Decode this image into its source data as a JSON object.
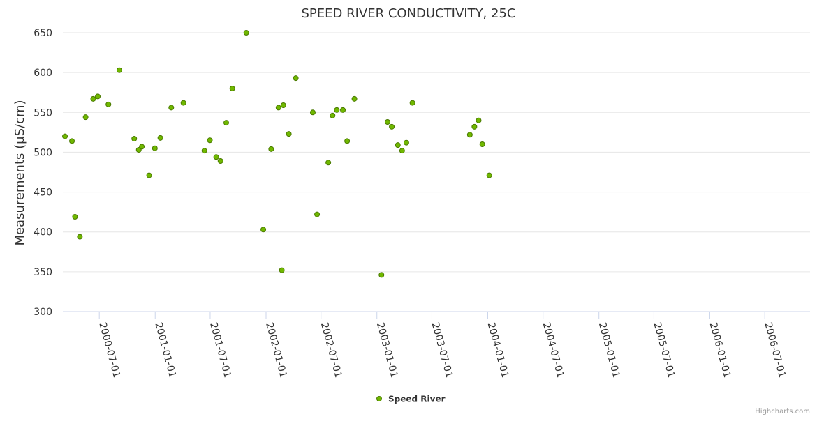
{
  "chart_data": {
    "type": "scatter",
    "title": "SPEED RIVER CONDUCTIVITY, 25C",
    "ylabel": "Measurements (µS/cm)",
    "ylim": [
      300,
      650
    ],
    "yticks": [
      300,
      350,
      400,
      450,
      500,
      550,
      600,
      650
    ],
    "xlim": [
      "2000-03-03",
      "2006-11-27"
    ],
    "xticks": [
      "2000-07-01",
      "2001-01-01",
      "2001-07-01",
      "2002-01-01",
      "2002-07-01",
      "2003-01-01",
      "2003-07-01",
      "2004-01-01",
      "2004-07-01",
      "2005-01-01",
      "2005-07-01",
      "2006-01-01",
      "2006-07-01"
    ],
    "grid": true,
    "legend": "bottom-center",
    "marker_fill": "#70b800",
    "marker_stroke": "#4a7a00",
    "series": [
      {
        "name": "Speed River",
        "points": [
          [
            "2000-03-10",
            520
          ],
          [
            "2000-04-02",
            514
          ],
          [
            "2000-04-12",
            419
          ],
          [
            "2000-04-28",
            394
          ],
          [
            "2000-05-17",
            544
          ],
          [
            "2000-06-11",
            567
          ],
          [
            "2000-06-26",
            570
          ],
          [
            "2000-07-31",
            560
          ],
          [
            "2000-09-05",
            603
          ],
          [
            "2000-10-24",
            517
          ],
          [
            "2000-11-08",
            503
          ],
          [
            "2000-11-18",
            507
          ],
          [
            "2000-12-12",
            471
          ],
          [
            "2000-12-31",
            505
          ],
          [
            "2001-01-18",
            518
          ],
          [
            "2001-02-23",
            556
          ],
          [
            "2001-04-04",
            562
          ],
          [
            "2001-06-12",
            502
          ],
          [
            "2001-06-30",
            515
          ],
          [
            "2001-07-21",
            494
          ],
          [
            "2001-08-04",
            489
          ],
          [
            "2001-08-23",
            537
          ],
          [
            "2001-09-12",
            580
          ],
          [
            "2001-10-28",
            650
          ],
          [
            "2001-12-23",
            403
          ],
          [
            "2002-01-18",
            504
          ],
          [
            "2002-02-11",
            556
          ],
          [
            "2002-02-22",
            352
          ],
          [
            "2002-02-27",
            559
          ],
          [
            "2002-03-17",
            523
          ],
          [
            "2002-04-09",
            593
          ],
          [
            "2002-06-04",
            550
          ],
          [
            "2002-06-18",
            422
          ],
          [
            "2002-07-25",
            487
          ],
          [
            "2002-08-08",
            546
          ],
          [
            "2002-08-22",
            553
          ],
          [
            "2002-09-11",
            553
          ],
          [
            "2002-09-25",
            514
          ],
          [
            "2002-10-19",
            567
          ],
          [
            "2003-01-16",
            346
          ],
          [
            "2003-02-05",
            538
          ],
          [
            "2003-02-19",
            532
          ],
          [
            "2003-03-11",
            509
          ],
          [
            "2003-03-25",
            502
          ],
          [
            "2003-04-08",
            512
          ],
          [
            "2003-04-28",
            562
          ],
          [
            "2003-11-03",
            522
          ],
          [
            "2003-11-18",
            532
          ],
          [
            "2003-12-02",
            540
          ],
          [
            "2003-12-14",
            510
          ],
          [
            "2004-01-06",
            471
          ]
        ]
      }
    ]
  },
  "credit": "Highcharts.com"
}
